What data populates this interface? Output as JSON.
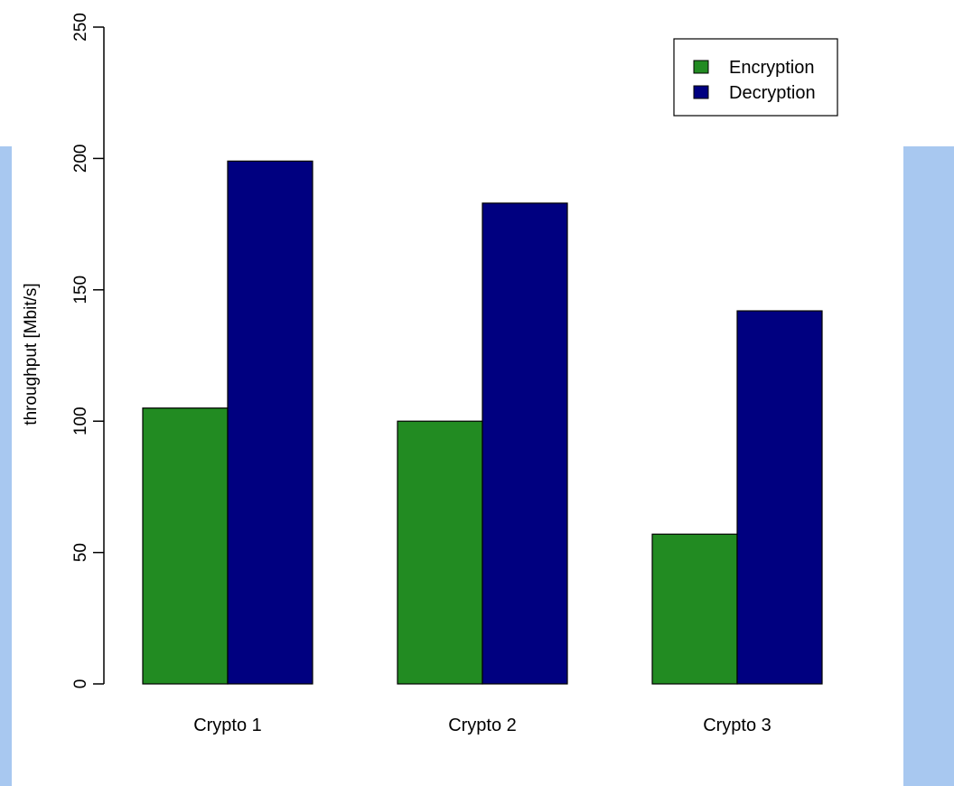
{
  "chart_data": {
    "type": "bar",
    "categories": [
      "Crypto 1",
      "Crypto 2",
      "Crypto 3"
    ],
    "series": [
      {
        "name": "Encryption",
        "values": [
          105,
          100,
          57
        ]
      },
      {
        "name": "Decryption",
        "values": [
          199,
          183,
          142
        ]
      }
    ],
    "title": "",
    "xlabel": "",
    "ylabel": "throughput [Mbit/s]",
    "ylim": [
      0,
      250
    ],
    "yticks": [
      0,
      50,
      100,
      150,
      200,
      250
    ],
    "grid": false,
    "legend_position": "top-right",
    "colors": {
      "Encryption": "#228b22",
      "Decryption": "#000080",
      "bar_outline": "#000000",
      "side_panels": "#a8c8f0"
    }
  }
}
